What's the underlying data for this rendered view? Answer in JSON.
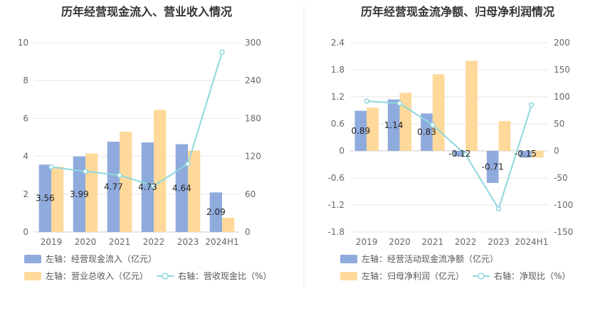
{
  "chart_data": [
    {
      "type": "bar",
      "title": "历年经营现金流入、营业收入情况",
      "categories": [
        "2019",
        "2020",
        "2021",
        "2022",
        "2023",
        "2024H1"
      ],
      "left_axis": {
        "ylim": [
          0,
          10
        ],
        "ticks": [
          "0",
          "2",
          "4",
          "6",
          "8",
          "10"
        ]
      },
      "right_axis": {
        "ylim": [
          0,
          300
        ],
        "ticks": [
          "0",
          "60",
          "120",
          "180",
          "240",
          "300"
        ]
      },
      "series": [
        {
          "name": "左轴：经营现金流入（亿元）",
          "kind": "bar",
          "axis": "left",
          "color": "#8faadc",
          "values": [
            3.56,
            3.99,
            4.77,
            4.73,
            4.64,
            2.09
          ],
          "labels": [
            "3.56",
            "3.99",
            "4.77",
            "4.73",
            "4.64",
            "2.09"
          ]
        },
        {
          "name": "左轴：营业总收入（亿元）",
          "kind": "bar",
          "axis": "left",
          "color": "#ffd99a",
          "values": [
            3.45,
            4.15,
            5.3,
            6.45,
            4.3,
            0.75
          ]
        },
        {
          "name": "右轴：营收现金比（%）",
          "kind": "line",
          "axis": "right",
          "color": "#8ed8de",
          "values": [
            103,
            96,
            90,
            73,
            108,
            285
          ]
        }
      ],
      "legend": [
        "左轴：经营现金流入（亿元）",
        "左轴：营业总收入（亿元）",
        "右轴：营收现金比（%）"
      ]
    },
    {
      "type": "bar",
      "title": "历年经营现金流净额、归母净利润情况",
      "categories": [
        "2019",
        "2020",
        "2021",
        "2022",
        "2023",
        "2024H1"
      ],
      "left_axis": {
        "ylim": [
          -1.8,
          2.4
        ],
        "ticks": [
          "-1.8",
          "-1.2",
          "-0.6",
          "0",
          "0.6",
          "1.2",
          "1.8",
          "2.4"
        ]
      },
      "right_axis": {
        "ylim": [
          -150,
          200
        ],
        "ticks": [
          "-150",
          "-100",
          "-50",
          "0",
          "50",
          "100",
          "150",
          "200"
        ]
      },
      "series": [
        {
          "name": "左轴：经营活动现金流净额（亿元）",
          "kind": "bar",
          "axis": "left",
          "color": "#8faadc",
          "values": [
            0.89,
            1.14,
            0.83,
            -0.12,
            -0.71,
            -0.15
          ],
          "labels": [
            "0.89",
            "1.14",
            "0.83",
            "-0.12",
            "-0.71",
            "-0.15"
          ]
        },
        {
          "name": "左轴：归母净利润（亿元）",
          "kind": "bar",
          "axis": "left",
          "color": "#ffd99a",
          "values": [
            0.96,
            1.29,
            1.7,
            2.0,
            0.66,
            -0.15
          ]
        },
        {
          "name": "右轴：净现比（%）",
          "kind": "line",
          "axis": "right",
          "color": "#8ed8de",
          "values": [
            92,
            88,
            48,
            -7,
            -107,
            85
          ]
        }
      ],
      "legend": [
        "左轴：经营活动现金流净额（亿元）",
        "左轴：归母净利润（亿元）",
        "右轴：净现比（%）"
      ]
    }
  ]
}
